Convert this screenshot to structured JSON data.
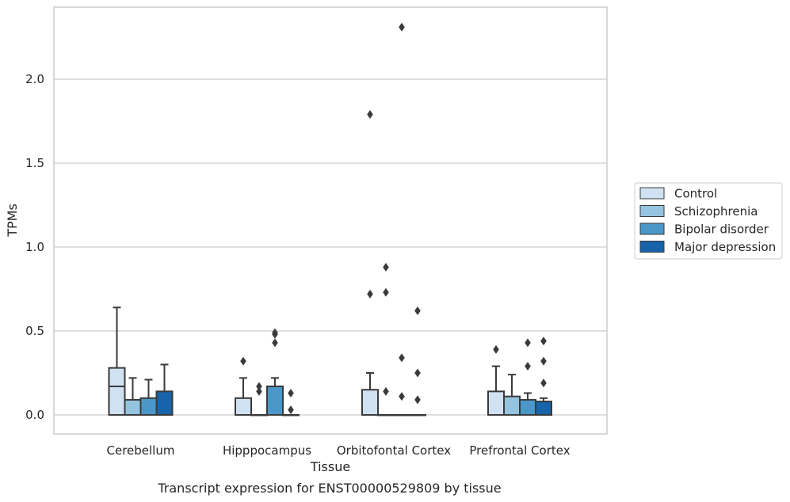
{
  "caption": "Transcript expression for ENST00000529809 by tissue",
  "chart_data": {
    "type": "box",
    "xlabel": "Tissue",
    "ylabel": "TPMs",
    "ylim": [
      -0.11,
      2.43
    ],
    "yticks": [
      "0.0",
      "0.5",
      "1.0",
      "1.5",
      "2.0"
    ],
    "grid": "horizontal",
    "legend_position": "right",
    "categories": [
      "Cerebellum",
      "Hipppocampus",
      "Orbitofontal Cortex",
      "Prefrontal Cortex"
    ],
    "series": [
      {
        "name": "Control",
        "color": "#d0e1f2",
        "boxes": [
          {
            "q1": 0.0,
            "median": 0.17,
            "q3": 0.28,
            "whisker_low": 0.0,
            "whisker_high": 0.64,
            "outliers": []
          },
          {
            "q1": 0.0,
            "median": 0.0,
            "q3": 0.1,
            "whisker_low": 0.0,
            "whisker_high": 0.22,
            "outliers": [
              0.32
            ]
          },
          {
            "q1": 0.0,
            "median": 0.0,
            "q3": 0.15,
            "whisker_low": 0.0,
            "whisker_high": 0.25,
            "outliers": [
              0.72,
              1.79
            ]
          },
          {
            "q1": 0.0,
            "median": 0.0,
            "q3": 0.14,
            "whisker_low": 0.0,
            "whisker_high": 0.29,
            "outliers": [
              0.39
            ]
          }
        ]
      },
      {
        "name": "Schizophrenia",
        "color": "#94c4df",
        "boxes": [
          {
            "q1": 0.0,
            "median": 0.0,
            "q3": 0.09,
            "whisker_low": 0.0,
            "whisker_high": 0.22,
            "outliers": []
          },
          {
            "q1": 0.0,
            "median": 0.0,
            "q3": 0.0,
            "whisker_low": 0.0,
            "whisker_high": 0.0,
            "outliers": [
              0.14,
              0.17
            ]
          },
          {
            "q1": 0.0,
            "median": 0.0,
            "q3": 0.0,
            "whisker_low": 0.0,
            "whisker_high": 0.0,
            "outliers": [
              0.14,
              0.73,
              0.88
            ]
          },
          {
            "q1": 0.0,
            "median": 0.0,
            "q3": 0.11,
            "whisker_low": 0.0,
            "whisker_high": 0.24,
            "outliers": []
          }
        ]
      },
      {
        "name": "Bipolar disorder",
        "color": "#4a98c9",
        "boxes": [
          {
            "q1": 0.0,
            "median": 0.0,
            "q3": 0.1,
            "whisker_low": 0.0,
            "whisker_high": 0.21,
            "outliers": []
          },
          {
            "q1": 0.0,
            "median": 0.0,
            "q3": 0.17,
            "whisker_low": 0.0,
            "whisker_high": 0.22,
            "outliers": [
              0.43,
              0.48,
              0.49
            ]
          },
          {
            "q1": 0.0,
            "median": 0.0,
            "q3": 0.0,
            "whisker_low": 0.0,
            "whisker_high": 0.0,
            "outliers": [
              0.11,
              0.34,
              2.31
            ]
          },
          {
            "q1": 0.0,
            "median": 0.0,
            "q3": 0.09,
            "whisker_low": 0.0,
            "whisker_high": 0.13,
            "outliers": [
              0.29,
              0.43
            ]
          }
        ]
      },
      {
        "name": "Major depression",
        "color": "#1764ab",
        "boxes": [
          {
            "q1": 0.0,
            "median": 0.0,
            "q3": 0.14,
            "whisker_low": 0.0,
            "whisker_high": 0.3,
            "outliers": []
          },
          {
            "q1": 0.0,
            "median": 0.0,
            "q3": 0.0,
            "whisker_low": 0.0,
            "whisker_high": 0.0,
            "outliers": [
              0.03,
              0.13
            ]
          },
          {
            "q1": 0.0,
            "median": 0.0,
            "q3": 0.0,
            "whisker_low": 0.0,
            "whisker_high": 0.0,
            "outliers": [
              0.09,
              0.25,
              0.62
            ]
          },
          {
            "q1": 0.0,
            "median": 0.0,
            "q3": 0.08,
            "whisker_low": 0.0,
            "whisker_high": 0.1,
            "outliers": [
              0.19,
              0.32,
              0.44
            ]
          }
        ]
      }
    ]
  }
}
